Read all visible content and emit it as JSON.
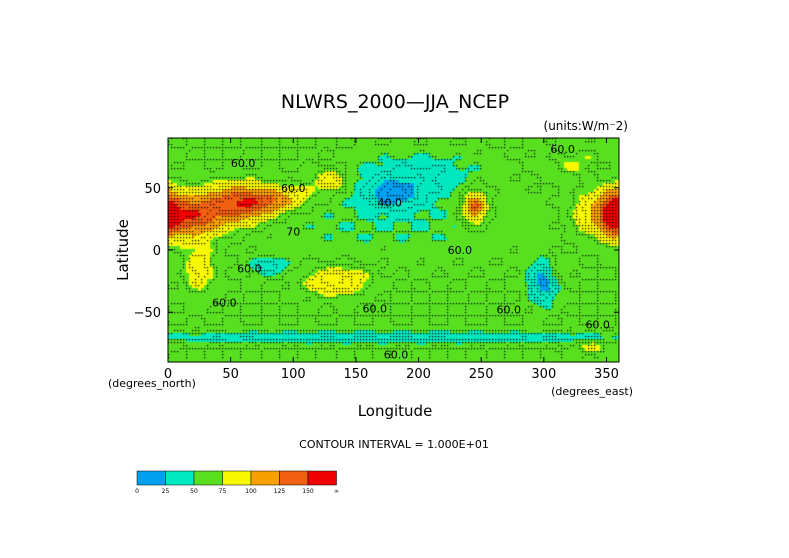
{
  "chart_data": {
    "type": "heatmap",
    "title": "NLWRS_2000—JJA_NCEP",
    "units": "(units:W/m⁻2)",
    "xlabel": "Longitude",
    "ylabel": "Latitude",
    "xunits": "(degrees_east)",
    "yunits": "(degrees_north)",
    "xlim": [
      0,
      360
    ],
    "ylim": [
      -90,
      90
    ],
    "xticks": [
      0,
      50,
      100,
      150,
      200,
      250,
      300,
      350
    ],
    "yticks": [
      -50,
      0,
      50
    ],
    "contour_interval": "CONTOUR INTERVAL = 1.000E+01",
    "contour_labels": [
      {
        "x": 60,
        "y": 70,
        "text": "60.0"
      },
      {
        "x": 100,
        "y": 50,
        "text": "60.0"
      },
      {
        "x": 177,
        "y": 38,
        "text": "40.0"
      },
      {
        "x": 100,
        "y": 15,
        "text": "70"
      },
      {
        "x": 233,
        "y": 0,
        "text": "60.0"
      },
      {
        "x": 65,
        "y": -15,
        "text": "60.0"
      },
      {
        "x": 45,
        "y": -42,
        "text": "60.0"
      },
      {
        "x": 165,
        "y": -47,
        "text": "60.0"
      },
      {
        "x": 272,
        "y": -48,
        "text": "60.0"
      },
      {
        "x": 343,
        "y": -60,
        "text": "60.0"
      },
      {
        "x": 315,
        "y": 81,
        "text": "60.0"
      },
      {
        "x": 182,
        "y": -84,
        "text": "60.0"
      }
    ],
    "anomalies": [
      {
        "x": 15,
        "y": 28,
        "sx": 22,
        "sy": 12,
        "a": 90
      },
      {
        "x": 60,
        "y": 38,
        "sx": 18,
        "sy": 10,
        "a": 85
      },
      {
        "x": 85,
        "y": 40,
        "sx": 12,
        "sy": 6,
        "a": 35
      },
      {
        "x": 105,
        "y": 45,
        "sx": 12,
        "sy": 8,
        "a": 20
      },
      {
        "x": 130,
        "y": 56,
        "sx": 8,
        "sy": 6,
        "a": 40
      },
      {
        "x": 200,
        "y": 60,
        "sx": 35,
        "sy": 12,
        "a": -22
      },
      {
        "x": 180,
        "y": 45,
        "sx": 15,
        "sy": 8,
        "a": -40
      },
      {
        "x": 180,
        "y": 20,
        "sx": 90,
        "sy": 20,
        "a": -10
      },
      {
        "x": 245,
        "y": 35,
        "sx": 8,
        "sy": 12,
        "a": 35
      },
      {
        "x": 245,
        "y": 35,
        "sx": 5,
        "sy": 6,
        "a": 45
      },
      {
        "x": 356,
        "y": 30,
        "sx": 7,
        "sy": 12,
        "a": 90
      },
      {
        "x": 335,
        "y": 30,
        "sx": 10,
        "sy": 15,
        "a": 20
      },
      {
        "x": 325,
        "y": 70,
        "sx": 20,
        "sy": 10,
        "a": 15
      },
      {
        "x": 25,
        "y": -15,
        "sx": 10,
        "sy": 15,
        "a": 25
      },
      {
        "x": 135,
        "y": -25,
        "sx": 18,
        "sy": 8,
        "a": 40
      },
      {
        "x": 300,
        "y": -25,
        "sx": 8,
        "sy": 12,
        "a": -45
      },
      {
        "x": 310,
        "y": -15,
        "sx": 8,
        "sy": 8,
        "a": 18
      },
      {
        "x": 80,
        "y": -13,
        "sx": 10,
        "sy": 5,
        "a": -25
      },
      {
        "x": 175,
        "y": -70,
        "sx": 130,
        "sy": 3,
        "a": -32
      },
      {
        "x": 340,
        "y": -78,
        "sx": 10,
        "sy": 4,
        "a": 20
      }
    ],
    "baseline": 60,
    "levels": [
      0,
      25,
      50,
      75,
      100,
      125,
      150
    ],
    "colors": [
      "#00a0f0",
      "#00e8c0",
      "#58e020",
      "#f8f800",
      "#f8a000",
      "#f06010",
      "#f00000"
    ],
    "colorbar_labels": [
      "0",
      "25",
      "50",
      "75",
      "100",
      "125",
      "150",
      "∞"
    ]
  }
}
